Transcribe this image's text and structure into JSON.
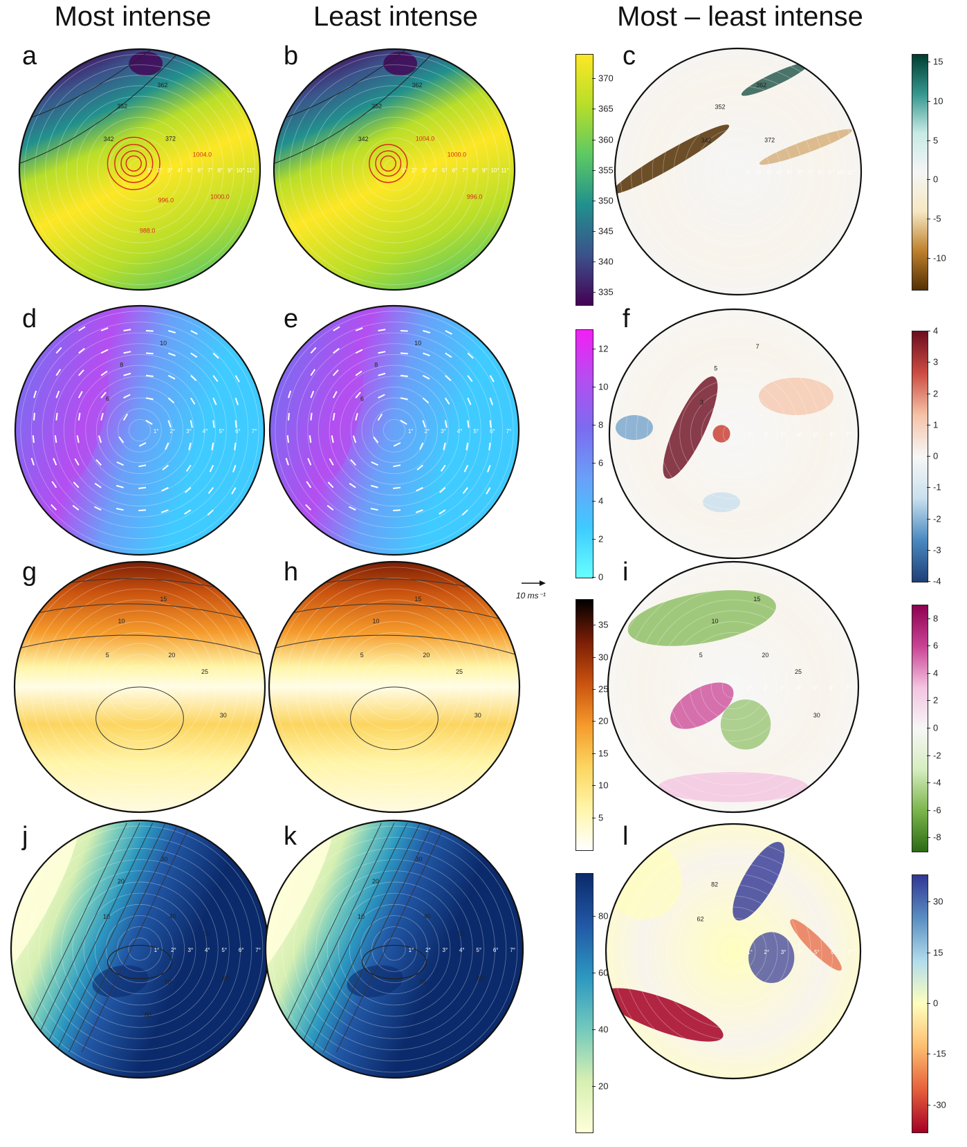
{
  "titles": {
    "col1": "Most intense",
    "col2": "Least intense",
    "col3": "Most – least intense"
  },
  "panel_labels": [
    "a",
    "b",
    "c",
    "d",
    "e",
    "f",
    "g",
    "h",
    "i",
    "j",
    "k",
    "l"
  ],
  "wind_reference": "10 ms⁻¹",
  "colors": {
    "viridis": [
      "#440154",
      "#3b528b",
      "#21908d",
      "#5dc963",
      "#b8de29",
      "#fde725"
    ],
    "brbg": [
      "#543005",
      "#bf812d",
      "#f6e8c3",
      "#f5f5f5",
      "#c7eae5",
      "#35978f",
      "#003c30"
    ],
    "cool": [
      "#66ffff",
      "#3fcbff",
      "#6aa0f8",
      "#7b6cf0",
      "#b44ef0",
      "#f21ff5"
    ],
    "rdbu_r": [
      "#1f3f77",
      "#4a89c1",
      "#c9e0ee",
      "#f7f7f7",
      "#f5c2a6",
      "#cc4c42",
      "#6b0d1f"
    ],
    "ylorbr": [
      "#ffffff",
      "#fff5a8",
      "#fcd560",
      "#f59a2b",
      "#c9520f",
      "#7a1e06",
      "#000000"
    ],
    "piyg": [
      "#2b6b14",
      "#7bb54c",
      "#d6edbf",
      "#f7f7f7",
      "#f3c4e0",
      "#c94394",
      "#8e0152"
    ],
    "ylgnbu": [
      "#ffffd9",
      "#d6efb2",
      "#73c9bd",
      "#2c98c0",
      "#2258a6",
      "#0b2a6b"
    ],
    "rdylbu": [
      "#a50026",
      "#e5603b",
      "#fdbe70",
      "#fffebe",
      "#b1dcec",
      "#5a8ec1",
      "#313695"
    ],
    "contour_red": "#d62b1a"
  },
  "chart_data": [
    {
      "panel": "a",
      "type": "heatmap",
      "variable_range": [
        333,
        374
      ],
      "contour_labels": [
        "342",
        "352",
        "362",
        "372",
        "1004.0",
        "1000.0",
        "996.0",
        "988.0"
      ],
      "axis_tick_labels": [
        "1°",
        "2°",
        "3°",
        "4°",
        "5°",
        "6°",
        "7°",
        "8°",
        "9°",
        "10°",
        "11°"
      ]
    },
    {
      "panel": "b",
      "type": "heatmap",
      "variable_range": [
        333,
        374
      ],
      "contour_labels": [
        "342",
        "352",
        "362",
        "1004.0",
        "1000.0",
        "996.0"
      ],
      "axis_tick_labels": [
        "1°",
        "2°",
        "3°",
        "4°",
        "5°",
        "6°",
        "7°",
        "8°",
        "9°",
        "10°",
        "11°"
      ]
    },
    {
      "panel": "ab_colorbar",
      "type": "heatmap",
      "ticks": [
        335,
        340,
        345,
        350,
        355,
        360,
        365,
        370
      ],
      "range": [
        333,
        374
      ]
    },
    {
      "panel": "c",
      "type": "heatmap",
      "contour_labels": [
        "342",
        "352",
        "362",
        "372"
      ],
      "colorbar_ticks": [
        15,
        10,
        5,
        0,
        -5,
        -10
      ],
      "range": [
        -14,
        16
      ],
      "axis_tick_labels": [
        "1°",
        "2°",
        "3°",
        "4°",
        "5°",
        "6°",
        "7°",
        "8°",
        "9°",
        "10°",
        "11°"
      ]
    },
    {
      "panel": "d",
      "type": "heatmap",
      "contour_labels": [
        "6",
        "8",
        "10"
      ],
      "axis_tick_labels": [
        "1°",
        "2°",
        "3°",
        "4°",
        "5°",
        "6°",
        "7°"
      ]
    },
    {
      "panel": "e",
      "type": "heatmap",
      "contour_labels": [
        "6",
        "8",
        "10"
      ],
      "axis_tick_labels": [
        "1°",
        "2°",
        "3°",
        "4°",
        "5°",
        "6°",
        "7°"
      ]
    },
    {
      "panel": "de_colorbar",
      "type": "heatmap",
      "ticks": [
        0,
        2,
        4,
        6,
        8,
        10,
        12
      ],
      "range": [
        0,
        13
      ]
    },
    {
      "panel": "f",
      "type": "heatmap",
      "contour_labels": [
        "3",
        "5",
        "7"
      ],
      "colorbar_ticks": [
        4,
        3,
        2,
        1,
        0,
        -1,
        -2,
        -3,
        -4
      ],
      "range": [
        -4,
        4
      ],
      "axis_tick_labels": [
        "1°",
        "2°",
        "3°",
        "4°",
        "5°",
        "6°",
        "7°"
      ]
    },
    {
      "panel": "g",
      "type": "heatmap",
      "contour_labels": [
        "5",
        "10",
        "15",
        "20",
        "25",
        "30"
      ]
    },
    {
      "panel": "h",
      "type": "heatmap",
      "contour_labels": [
        "5",
        "10",
        "15",
        "20",
        "25",
        "30"
      ]
    },
    {
      "panel": "gh_colorbar",
      "type": "heatmap",
      "ticks": [
        5,
        10,
        15,
        20,
        25,
        30,
        35
      ],
      "range": [
        0,
        39
      ]
    },
    {
      "panel": "i",
      "type": "heatmap",
      "contour_labels": [
        "5",
        "10",
        "15",
        "20",
        "25",
        "30"
      ],
      "colorbar_ticks": [
        8,
        6,
        4,
        2,
        0,
        -2,
        -4,
        -6,
        -8
      ],
      "range": [
        -9,
        9
      ],
      "axis_tick_labels": [
        "1°",
        "2°",
        "3°",
        "4°",
        "5°",
        "6°",
        "7°"
      ]
    },
    {
      "panel": "j",
      "type": "heatmap",
      "contour_labels": [
        "10",
        "20",
        "30",
        "40",
        "50",
        "60",
        "70",
        "80"
      ],
      "axis_tick_labels": [
        "1°",
        "2°",
        "3°",
        "4°",
        "5°",
        "6°",
        "7°"
      ]
    },
    {
      "panel": "k",
      "type": "heatmap",
      "contour_labels": [
        "10",
        "20",
        "30",
        "40",
        "50",
        "60",
        "70"
      ],
      "axis_tick_labels": [
        "1°",
        "2°",
        "3°",
        "4°",
        "5°",
        "6°",
        "7°"
      ]
    },
    {
      "panel": "jk_colorbar",
      "type": "heatmap",
      "ticks": [
        20,
        40,
        60,
        80
      ],
      "range": [
        4,
        95
      ]
    },
    {
      "panel": "l",
      "type": "heatmap",
      "contour_labels": [
        "62",
        "82"
      ],
      "colorbar_ticks": [
        30,
        15,
        0,
        -15,
        -30
      ],
      "range": [
        -38,
        38
      ],
      "axis_tick_labels": [
        "1°",
        "2°",
        "3°",
        "4°",
        "5°",
        "6°",
        "7°"
      ]
    }
  ]
}
